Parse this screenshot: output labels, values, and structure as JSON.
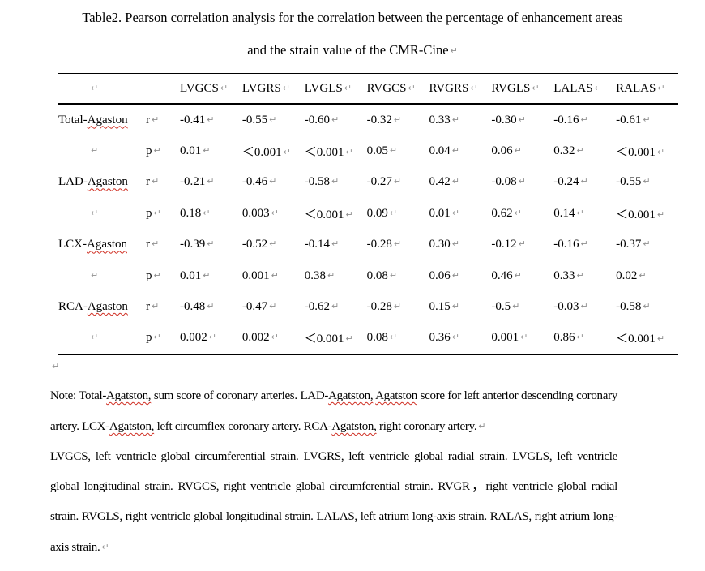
{
  "pilcrow": "↵",
  "title": {
    "line1": "Table2. Pearson correlation analysis for the correlation between the percentage of enhancement areas",
    "line2": "and the strain value of the CMR-Cine"
  },
  "table": {
    "columns": [
      "LVGCS",
      "LVGRS",
      "LVGLS",
      "RVGCS",
      "RVGRS",
      "RVGLS",
      "LALAS",
      "RALAS"
    ],
    "stat_labels": {
      "r": "r",
      "p": "p"
    },
    "groups": [
      {
        "label_prefix": "Total-",
        "label_flagged": "Agaston",
        "r": [
          "-0.41",
          "-0.55",
          "-0.60",
          "-0.32",
          "0.33",
          "-0.30",
          "-0.16",
          "-0.61"
        ],
        "p": [
          "0.01",
          "＜0.001",
          "＜0.001",
          "0.05",
          "0.04",
          "0.06",
          "0.32",
          "＜0.001"
        ]
      },
      {
        "label_prefix": "LAD-",
        "label_flagged": "Agaston",
        "r": [
          "-0.21",
          "-0.46",
          "-0.58",
          "-0.27",
          "0.42",
          "-0.08",
          "-0.24",
          "-0.55"
        ],
        "p": [
          "0.18",
          "0.003",
          "＜0.001",
          "0.09",
          "0.01",
          "0.62",
          "0.14",
          "＜0.001"
        ]
      },
      {
        "label_prefix": "LCX-",
        "label_flagged": "Agaston",
        "r": [
          "-0.39",
          "-0.52",
          "-0.14",
          "-0.28",
          "0.30",
          "-0.12",
          "-0.16",
          "-0.37"
        ],
        "p": [
          "0.01",
          "0.001",
          "0.38",
          "0.08",
          "0.06",
          "0.46",
          "0.33",
          "0.02"
        ]
      },
      {
        "label_prefix": "RCA-",
        "label_flagged": "Agaston",
        "r": [
          "-0.48",
          "-0.47",
          "-0.62",
          "-0.28",
          "0.15",
          "-0.5",
          "-0.03",
          "-0.58"
        ],
        "p": [
          "0.002",
          "0.002",
          "＜0.001",
          "0.08",
          "0.36",
          "0.001",
          "0.86",
          "＜0.001"
        ]
      }
    ]
  },
  "notes": {
    "para1_segments": [
      {
        "text": "Note:  Total-",
        "misspelled": false
      },
      {
        "text": "Agatston,",
        "misspelled": true
      },
      {
        "text": " sum score of coronary arteries. LAD-",
        "misspelled": false
      },
      {
        "text": "Agatston,",
        "misspelled": true
      },
      {
        "text": " ",
        "misspelled": false
      },
      {
        "text": "Agatston",
        "misspelled": true
      },
      {
        "text": " score for left anterior descending coronary artery. LCX-",
        "misspelled": false
      },
      {
        "text": "Agatston,",
        "misspelled": true
      },
      {
        "text": " left circumflex coronary artery. RCA-",
        "misspelled": false
      },
      {
        "text": "Agatston,",
        "misspelled": true
      },
      {
        "text": " right coronary artery.",
        "misspelled": false
      }
    ],
    "para2": "LVGCS, left ventricle global circumferential strain. LVGRS, left ventricle global radial strain.  LVGLS, left ventricle global longitudinal strain. RVGCS, right ventricle global circumferential strain. RVGR，right ventricle global radial strain. RVGLS, right ventricle global longitudinal strain. LALAS, left atrium long-axis strain. RALAS, right atrium long-axis strain."
  }
}
